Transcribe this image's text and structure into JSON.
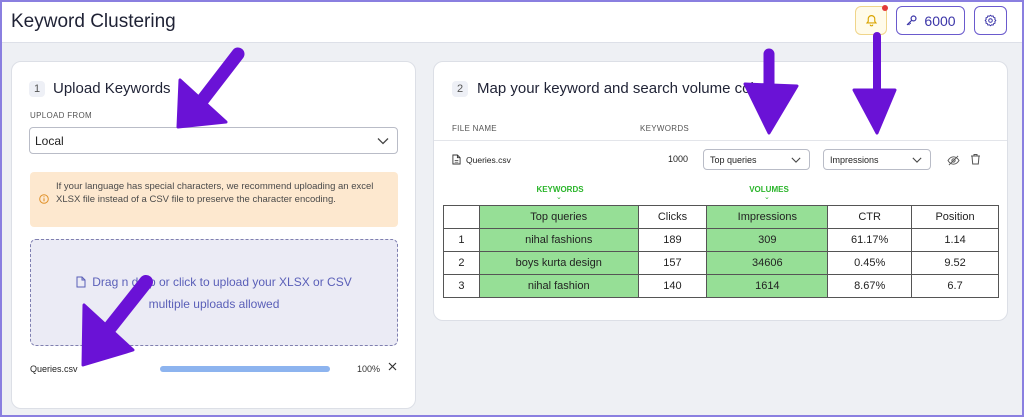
{
  "header": {
    "title": "Keyword Clustering",
    "credits": "6000"
  },
  "upload": {
    "step": "1",
    "title": "Upload Keywords",
    "upload_from_label": "UPLOAD FROM",
    "source_value": "Local",
    "notice": "If your language has special characters, we recommend uploading an excel XLSX file instead of a CSV file to preserve the character encoding.",
    "dropzone_line1": "Drag n drop or click to upload your XLSX or CSV",
    "dropzone_line2": "multiple uploads allowed",
    "file_name": "Queries.csv",
    "progress": 100,
    "progress_label": "100%"
  },
  "mapping": {
    "step": "2",
    "title": "Map your keyword and search volume columns",
    "col_file_name": "FILE NAME",
    "col_keywords": "KEYWORDS",
    "file_name": "Queries.csv",
    "keyword_count": "1000",
    "keyword_column": "Top queries",
    "volume_column": "Impressions",
    "keywords_tag": "KEYWORDS",
    "volumes_tag": "VOLUMES",
    "table": {
      "headers": [
        "",
        "Top queries",
        "Clicks",
        "Impressions",
        "CTR",
        "Position"
      ],
      "rows": [
        [
          "1",
          "nihal fashions",
          "189",
          "309",
          "61.17%",
          "1.14"
        ],
        [
          "2",
          "boys kurta design",
          "157",
          "34606",
          "0.45%",
          "9.52"
        ],
        [
          "3",
          "nihal fashion",
          "140",
          "1614",
          "8.67%",
          "6.7"
        ]
      ]
    }
  },
  "colors": {
    "accent": "#6a5acd",
    "highlight": "#96df96",
    "annotation_arrow": "#6a12d6"
  },
  "icons": [
    "bell-icon",
    "key-icon",
    "gear-icon",
    "chevron-down-icon",
    "info-icon",
    "file-icon",
    "eye-off-icon",
    "trash-icon",
    "close-icon"
  ]
}
